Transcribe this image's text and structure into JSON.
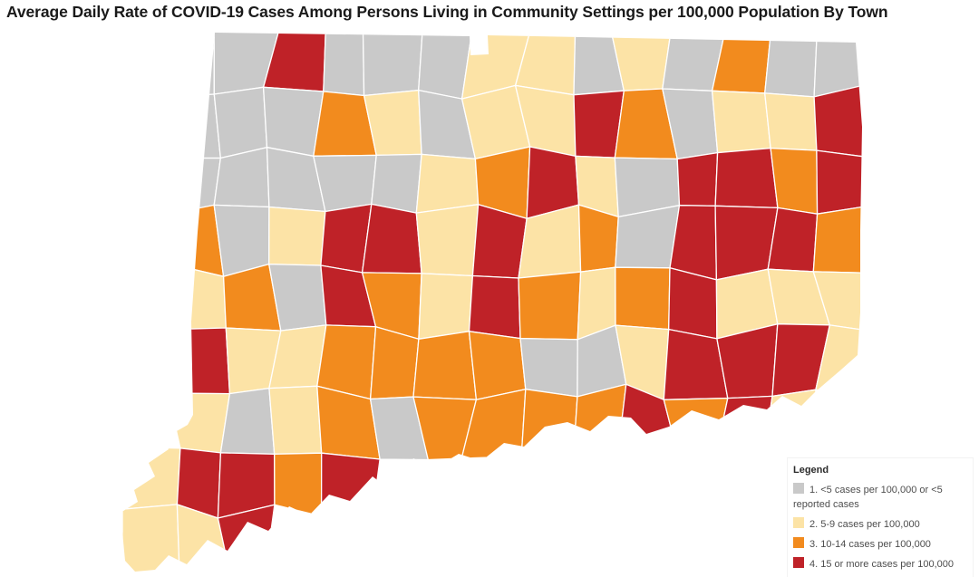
{
  "title": "Average Daily Rate of COVID-19 Cases Among Persons Living in Community Settings per 100,000 Population By Town",
  "legend": {
    "heading": "Legend",
    "items": [
      {
        "category": 1,
        "label": "1. <5 cases per 100,000 or <5 reported cases",
        "color": "#c9c9c9"
      },
      {
        "category": 2,
        "label": "2. 5-9 cases per 100,000",
        "color": "#fce3a6"
      },
      {
        "category": 3,
        "label": "3. 10-14 cases per 100,000",
        "color": "#f28b1e"
      },
      {
        "category": 4,
        "label": "4. 15 or more cases per 100,000",
        "color": "#bf2228"
      }
    ]
  },
  "map": {
    "region": "Connecticut towns choropleth",
    "palette": {
      "1": "#c9c9c9",
      "2": "#fce3a6",
      "3": "#f28b1e",
      "4": "#bf2228"
    },
    "stroke": "#ffffff",
    "grid_origin": [
      135,
      35
    ],
    "grid_size": [
      825,
      597
    ],
    "grid_cols": 15,
    "grid_rows": [
      "011411122121311",
      "011132122431224",
      "011111234214434",
      "031244242314443",
      "023143243234222",
      "042233331124442",
      "021231333343420",
      "244340000000000",
      "224000000000000"
    ],
    "outline": [
      [
        237,
        36
      ],
      [
        518,
        40
      ],
      [
        519,
        61
      ],
      [
        539,
        60
      ],
      [
        538,
        39
      ],
      [
        944,
        47
      ],
      [
        951,
        140
      ],
      [
        949,
        255
      ],
      [
        949,
        345
      ],
      [
        946,
        392
      ],
      [
        928,
        408
      ],
      [
        900,
        432
      ],
      [
        884,
        448
      ],
      [
        863,
        437
      ],
      [
        846,
        452
      ],
      [
        820,
        447
      ],
      [
        793,
        463
      ],
      [
        763,
        453
      ],
      [
        738,
        471
      ],
      [
        713,
        479
      ],
      [
        696,
        461
      ],
      [
        671,
        459
      ],
      [
        651,
        476
      ],
      [
        626,
        466
      ],
      [
        601,
        471
      ],
      [
        578,
        493
      ],
      [
        556,
        489
      ],
      [
        531,
        509
      ],
      [
        506,
        501
      ],
      [
        481,
        516
      ],
      [
        456,
        506
      ],
      [
        431,
        541
      ],
      [
        411,
        526
      ],
      [
        386,
        553
      ],
      [
        363,
        546
      ],
      [
        341,
        569
      ],
      [
        319,
        559
      ],
      [
        296,
        586
      ],
      [
        273,
        576
      ],
      [
        251,
        608
      ],
      [
        229,
        596
      ],
      [
        206,
        623
      ],
      [
        186,
        613
      ],
      [
        171,
        629
      ],
      [
        149,
        631
      ],
      [
        138,
        619
      ],
      [
        133,
        566
      ],
      [
        152,
        554
      ],
      [
        148,
        541
      ],
      [
        171,
        526
      ],
      [
        164,
        511
      ],
      [
        186,
        496
      ],
      [
        181,
        484
      ],
      [
        207,
        469
      ],
      [
        213,
        458
      ],
      [
        211,
        355
      ],
      [
        218,
        256
      ],
      [
        228,
        140
      ],
      [
        237,
        36
      ]
    ]
  }
}
